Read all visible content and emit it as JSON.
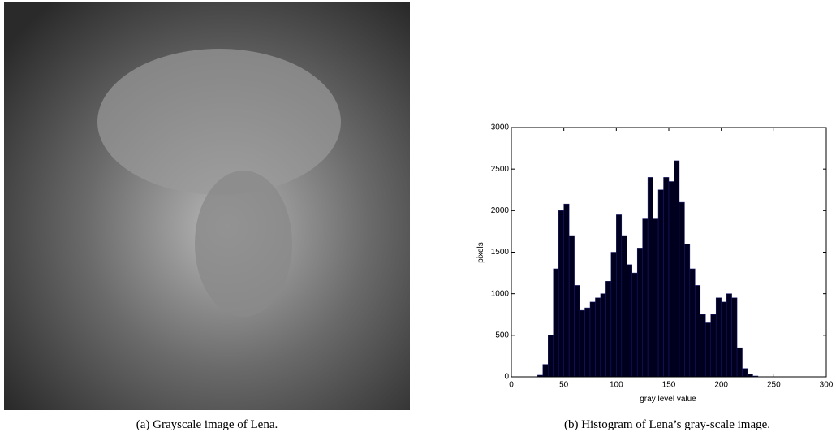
{
  "subfigures": [
    {
      "caption": "(a) Grayscale image of Lena."
    },
    {
      "caption": "(b) Histogram of Lena’s gray-scale image."
    }
  ],
  "chart_data": {
    "type": "histogram",
    "xlabel": "gray level value",
    "ylabel": "pixels",
    "bins": [
      20,
      25,
      30,
      35,
      40,
      45,
      50,
      55,
      60,
      65,
      70,
      75,
      80,
      85,
      90,
      95,
      100,
      105,
      110,
      115,
      120,
      125,
      130,
      135,
      140,
      145,
      150,
      155,
      160,
      165,
      170,
      175,
      180,
      185,
      190,
      195,
      200,
      205,
      210,
      215,
      220,
      225,
      230,
      235,
      240
    ],
    "values": [
      0,
      20,
      150,
      500,
      1300,
      2000,
      2080,
      1700,
      1100,
      800,
      830,
      900,
      950,
      1000,
      1150,
      1500,
      1950,
      1700,
      1350,
      1250,
      1550,
      1900,
      2400,
      1900,
      2250,
      2400,
      2350,
      2600,
      2100,
      1600,
      1300,
      1100,
      750,
      650,
      750,
      950,
      900,
      1000,
      950,
      350,
      100,
      30,
      10,
      0
    ],
    "color": "#00001e",
    "xlim": [
      0,
      300
    ],
    "xticks": [
      0,
      50,
      100,
      150,
      200,
      250,
      300
    ],
    "ylim": [
      0,
      3000
    ],
    "yticks": [
      0,
      500,
      1000,
      1500,
      2000,
      2500,
      3000
    ]
  }
}
